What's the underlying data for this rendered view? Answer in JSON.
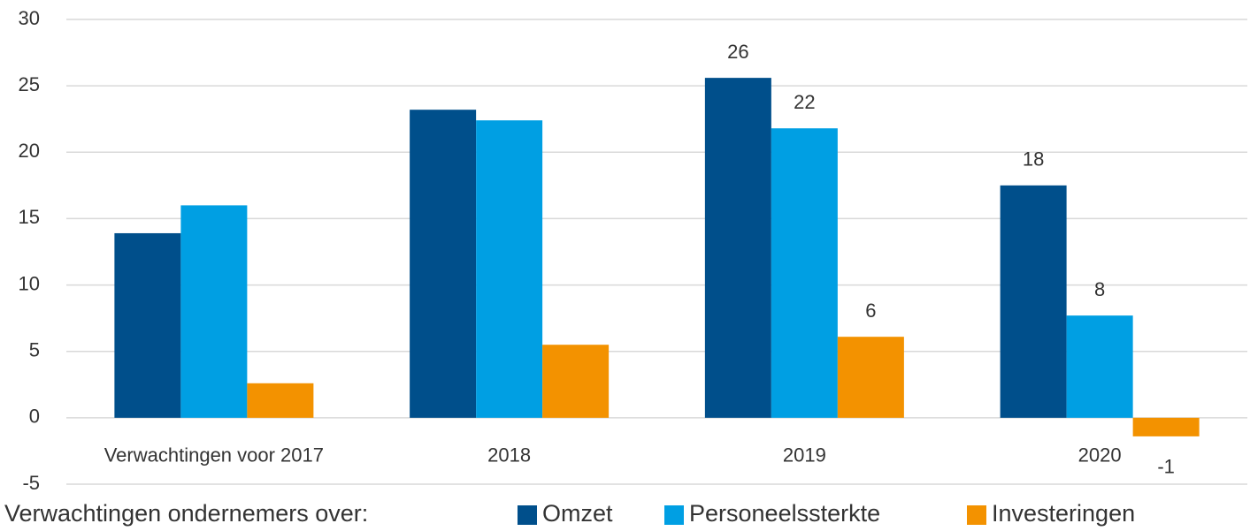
{
  "chart_data": {
    "type": "bar",
    "categories": [
      "Verwachtingen voor 2017",
      "2018",
      "2019",
      "2020"
    ],
    "legend_title": "Verwachtingen ondernemers over:",
    "series": [
      {
        "name": "Omzet",
        "color": "#004f8b",
        "values": [
          13.9,
          23.2,
          25.6,
          17.5
        ],
        "value_labels": [
          null,
          null,
          "26",
          "18"
        ]
      },
      {
        "name": "Personeelssterkte",
        "color": "#009fe3",
        "values": [
          16.0,
          22.4,
          21.8,
          7.7
        ],
        "value_labels": [
          null,
          null,
          "22",
          "8"
        ]
      },
      {
        "name": "Investeringen",
        "color": "#f39200",
        "values": [
          2.6,
          5.5,
          6.1,
          -1.4
        ],
        "value_labels": [
          null,
          null,
          "6",
          "-1"
        ]
      }
    ],
    "ylim": [
      -5,
      30
    ],
    "yticks": [
      -5,
      0,
      5,
      10,
      15,
      20,
      25,
      30
    ],
    "grid": true,
    "legend": "bottom"
  }
}
